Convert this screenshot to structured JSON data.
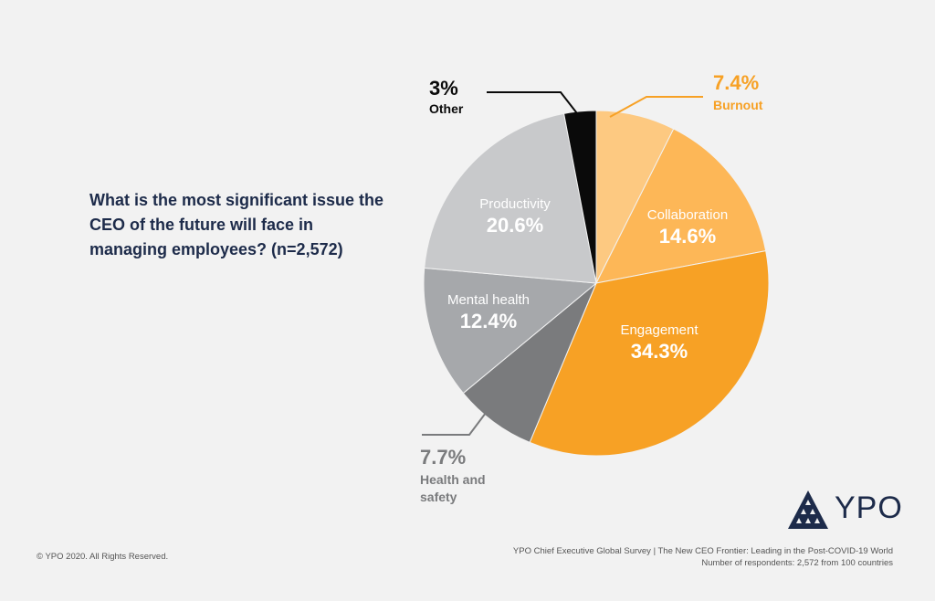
{
  "question": "What is the most significant issue the CEO of the future will face in managing employees? (n=2,572)",
  "footer": {
    "copyright": "© YPO 2020. All Rights Reserved.",
    "source_line1": "YPO Chief Executive Global Survey | The New CEO Frontier: Leading in the Post-COVID-19 World",
    "source_line2": "Number of respondents: 2,572 from 100 countries"
  },
  "logo": {
    "text": "YPO",
    "color": "#1d2b4a"
  },
  "chart_data": {
    "type": "pie",
    "title": "",
    "slices": [
      {
        "label": "Burnout",
        "value_label": "7.4%",
        "value": 7.4,
        "color": "#fdc981"
      },
      {
        "label": "Collaboration",
        "value_label": "14.6%",
        "value": 14.6,
        "color": "#fdb757"
      },
      {
        "label": "Engagement",
        "value_label": "34.3%",
        "value": 34.3,
        "color": "#f7a125"
      },
      {
        "label": "Health and safety",
        "value_label": "7.7%",
        "value": 7.7,
        "color": "#7a7b7d"
      },
      {
        "label": "Mental health",
        "value_label": "12.4%",
        "value": 12.4,
        "color": "#a6a8ab"
      },
      {
        "label": "Productivity",
        "value_label": "20.6%",
        "value": 20.6,
        "color": "#c8c9cb"
      },
      {
        "label": "Other",
        "value_label": "3%",
        "value": 3.0,
        "color": "#0a0a0a"
      }
    ]
  }
}
